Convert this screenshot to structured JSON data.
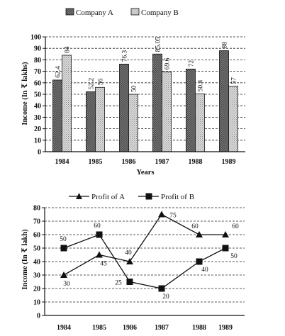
{
  "chart_data": [
    {
      "type": "bar",
      "categories": [
        "1984",
        "1985",
        "1986",
        "1987",
        "1988",
        "1989"
      ],
      "series": [
        {
          "name": "Company A",
          "values": [
            62.4,
            52.2,
            76.3,
            85.05,
            72,
            88
          ],
          "labels": [
            "62.4",
            "52.2",
            "76.3",
            "85.05",
            "72",
            "88"
          ]
        },
        {
          "name": "Company B",
          "values": [
            84,
            56,
            50,
            69.6,
            50.4,
            57
          ],
          "labels": [
            "84",
            "56",
            "50",
            "69.6",
            "50.4",
            "57"
          ]
        }
      ],
      "xlabel": "Years",
      "ylabel": "Income (In ₹ lakhs)",
      "ylim": [
        0,
        100
      ],
      "yticks": [
        "0",
        "10",
        "20",
        "30",
        "40",
        "50",
        "60",
        "70",
        "80",
        "90",
        "100"
      ],
      "grid": "dashed-horizontal",
      "legend_position": "top",
      "colors": {
        "Company A": "#6f6f6f",
        "Company B": "#c8c8c8"
      }
    },
    {
      "type": "line",
      "categories": [
        "1984",
        "1985",
        "1986",
        "1987",
        "1988",
        "1989"
      ],
      "series": [
        {
          "name": "Profit of A",
          "marker": "triangle",
          "values": [
            30,
            45,
            40,
            75,
            60,
            60
          ],
          "labels": [
            "30",
            "45",
            "40",
            "75",
            "60",
            "60"
          ]
        },
        {
          "name": "Profit of B",
          "marker": "square",
          "values": [
            50,
            60,
            25,
            20,
            40,
            50
          ],
          "labels": [
            "50",
            "60",
            "25",
            "20",
            "40",
            "50"
          ]
        }
      ],
      "xlabel": "",
      "ylabel": "Income (In ₹ lakh)",
      "ylim": [
        0,
        80
      ],
      "yticks": [
        "0",
        "10",
        "20",
        "30",
        "40",
        "50",
        "60",
        "70",
        "80"
      ],
      "grid": "dashed-horizontal",
      "legend_position": "top",
      "colors": {
        "Profit of A": "#111111",
        "Profit of B": "#111111"
      }
    }
  ]
}
